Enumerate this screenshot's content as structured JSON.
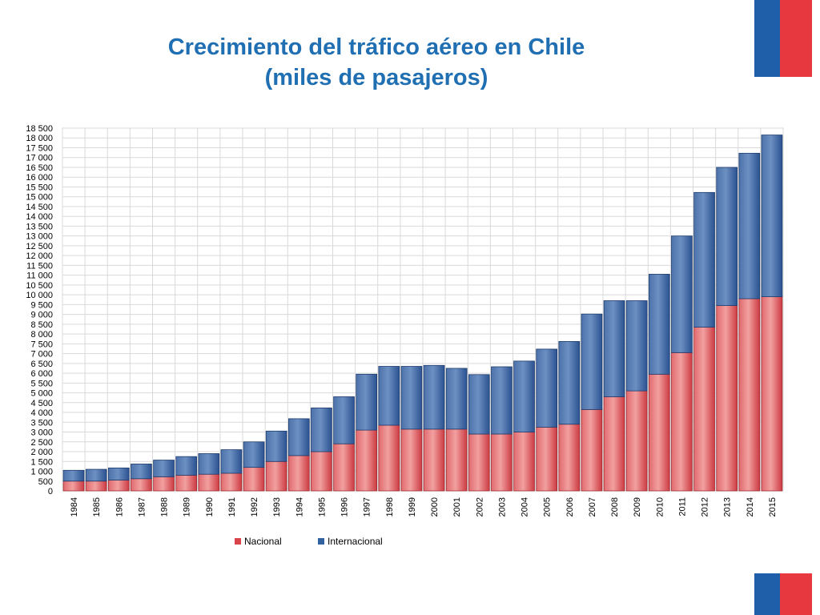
{
  "title_line1": "Crecimiento del tráfico aéreo en Chile",
  "title_line2": "(miles de pasajeros)",
  "colors": {
    "nacional": "#d9434a",
    "internacional": "#33609e",
    "title": "#1f6fb2",
    "flag_blue": "#1f5ea8",
    "flag_red": "#e8383f"
  },
  "chart_data": {
    "type": "bar",
    "stacked": true,
    "categories": [
      "1984",
      "1985",
      "1986",
      "1987",
      "1988",
      "1989",
      "1990",
      "1991",
      "1992",
      "1993",
      "1994",
      "1995",
      "1996",
      "1997",
      "1998",
      "1999",
      "2000",
      "2001",
      "2002",
      "2003",
      "2004",
      "2005",
      "2006",
      "2007",
      "2008",
      "2009",
      "2010",
      "2011",
      "2012",
      "2013",
      "2014",
      "2015"
    ],
    "series": [
      {
        "name": "Nacional",
        "color": "#d9434a",
        "values": [
          500,
          500,
          550,
          620,
          720,
          800,
          850,
          900,
          1200,
          1500,
          1800,
          2000,
          2400,
          3100,
          3350,
          3150,
          3150,
          3150,
          2900,
          2900,
          3000,
          3250,
          3400,
          4150,
          4800,
          5100,
          5950,
          7050,
          8350,
          9450,
          9800,
          9900
        ]
      },
      {
        "name": "Internacional",
        "color": "#33609e",
        "values": [
          550,
          600,
          620,
          750,
          850,
          950,
          1050,
          1200,
          1300,
          1550,
          1880,
          2230,
          2400,
          2850,
          3000,
          3200,
          3250,
          3100,
          3030,
          3430,
          3620,
          3980,
          4220,
          4870,
          4900,
          4600,
          5100,
          5950,
          6870,
          7050,
          7420,
          8250
        ]
      }
    ],
    "ylim": [
      0,
      18500
    ],
    "ytick_step": 500,
    "grid": true,
    "legend": "bottom"
  }
}
